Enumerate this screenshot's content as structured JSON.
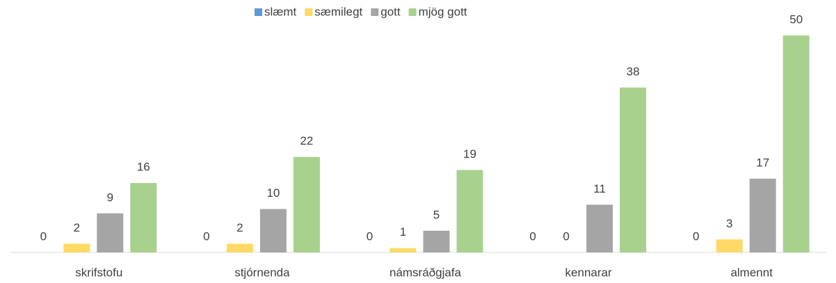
{
  "chart_data": {
    "type": "bar",
    "categories": [
      "skrifstofu",
      "stjórnenda",
      "námsráðgjafa",
      "kennarar",
      "almennt"
    ],
    "series": [
      {
        "name": "slæmt",
        "color": "#5b9bd5",
        "values": [
          0,
          0,
          0,
          0,
          0
        ]
      },
      {
        "name": "sæmilegt",
        "color": "#ffd966",
        "values": [
          2,
          2,
          1,
          0,
          3
        ]
      },
      {
        "name": "gott",
        "color": "#a5a5a5",
        "values": [
          9,
          10,
          5,
          11,
          17
        ]
      },
      {
        "name": "mjög gott",
        "color": "#a9d18e",
        "values": [
          16,
          22,
          19,
          38,
          50
        ]
      }
    ],
    "ylim": [
      0,
      50
    ],
    "legend": "top",
    "data_labels": true
  }
}
